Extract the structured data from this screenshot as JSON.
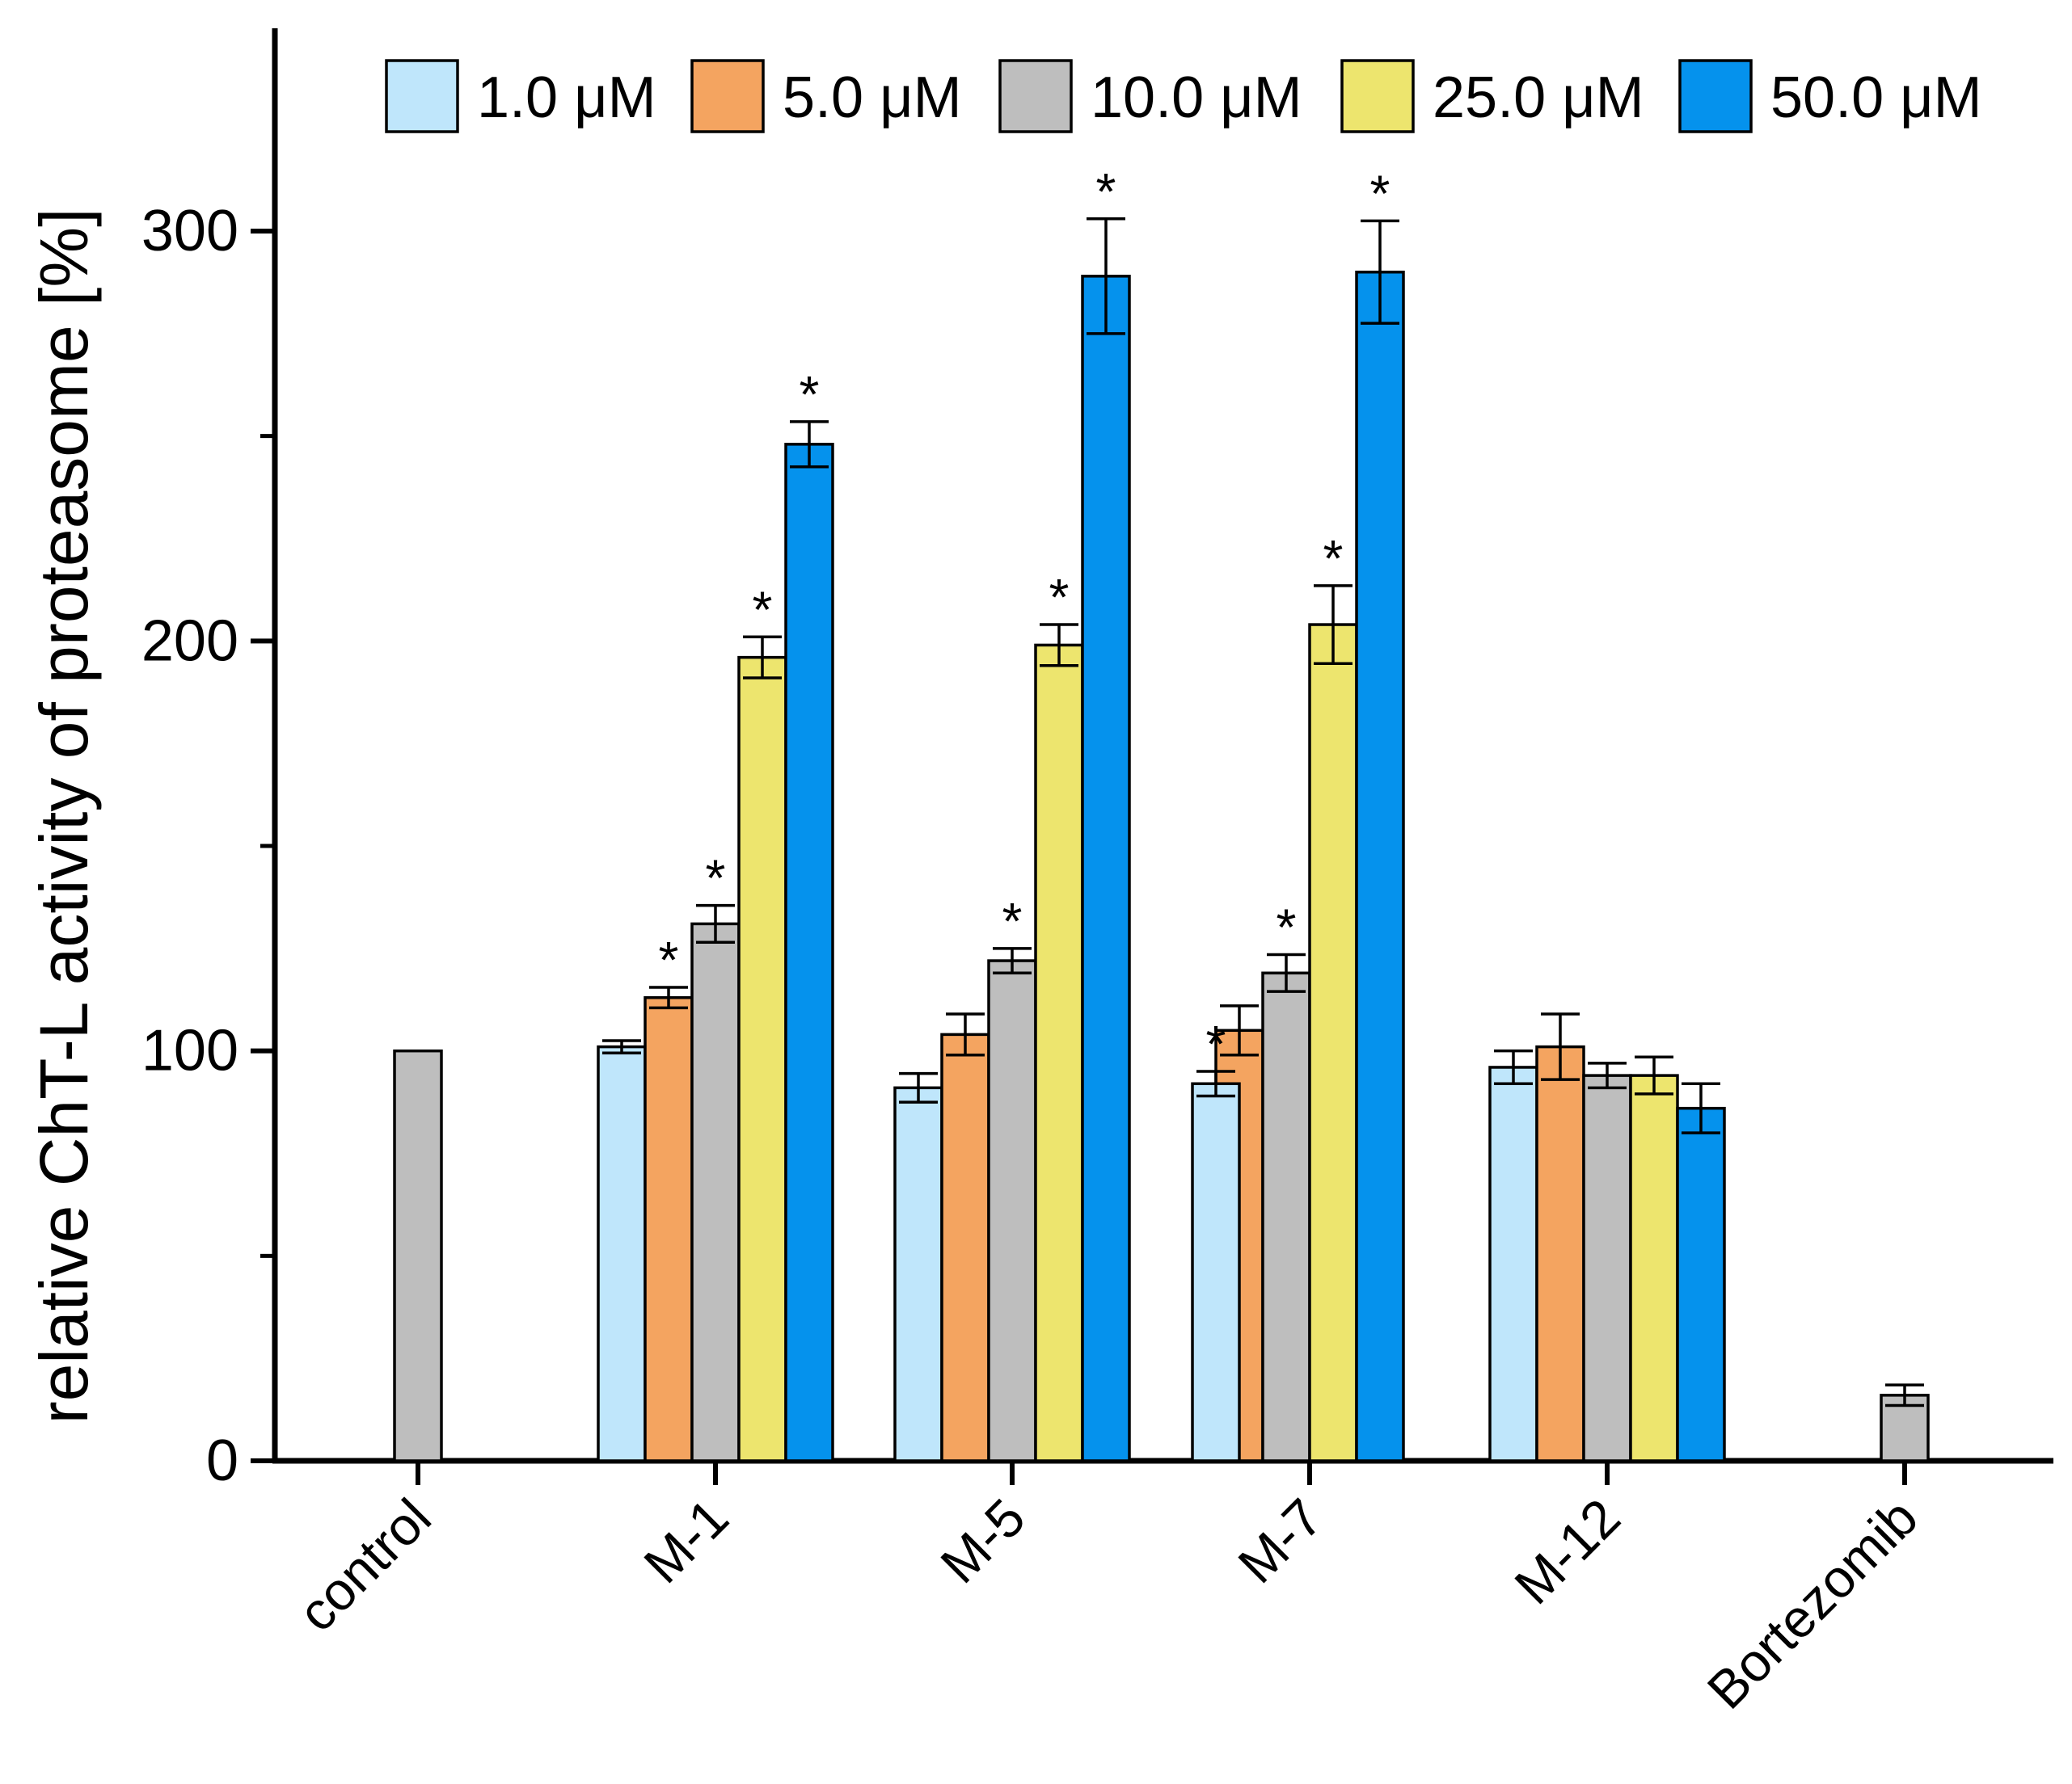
{
  "chart_data": {
    "type": "bar",
    "title": "",
    "xlabel": "",
    "ylabel": "relative ChT-L activity of proteasome [%]",
    "ylim": [
      0,
      350
    ],
    "yticks_major": [
      0,
      100,
      200,
      300
    ],
    "yticks_minor": [
      50,
      150,
      250
    ],
    "grid": false,
    "legend_position": "top",
    "categories": [
      "control",
      "M-1",
      "M-5",
      "M-7",
      "M-12",
      "Bortezomib"
    ],
    "series": [
      {
        "name": "1.0 μM",
        "color": "#bfe6fb",
        "values": [
          null,
          101,
          91,
          null,
          96,
          null
        ],
        "errors": [
          null,
          1.5,
          3.5,
          null,
          4,
          null
        ],
        "significant": [
          false,
          false,
          false,
          false,
          false,
          false
        ]
      },
      {
        "name": "5.0 μM",
        "color": "#f4a460",
        "values": [
          null,
          113,
          104,
          105,
          101,
          null
        ],
        "errors": [
          null,
          2.5,
          5,
          6,
          8,
          null
        ],
        "significant": [
          false,
          true,
          false,
          false,
          false,
          false
        ]
      },
      {
        "name": "10.0 μM",
        "color": "#bebebe",
        "values": [
          100,
          131,
          122,
          119,
          94,
          16
        ],
        "errors": [
          0,
          4.5,
          3,
          4.5,
          3,
          2.5
        ],
        "significant": [
          false,
          true,
          true,
          true,
          false,
          false
        ]
      },
      {
        "name": "25.0 μM",
        "color": "#ede56e",
        "values": [
          null,
          196,
          199,
          204,
          94,
          null
        ],
        "errors": [
          null,
          5,
          5,
          9.5,
          4.5,
          null
        ],
        "significant": [
          false,
          true,
          true,
          true,
          false,
          false
        ]
      },
      {
        "name": "50.0 μM",
        "color": "#0592ed",
        "values": [
          null,
          248,
          289,
          290,
          86,
          null
        ],
        "errors": [
          null,
          5.5,
          14,
          12.5,
          6,
          null
        ],
        "significant": [
          false,
          true,
          true,
          true,
          false,
          false
        ]
      }
    ],
    "extra_significance": [
      {
        "category": "M-7",
        "series": "1.0 μM",
        "value": 92,
        "error": 3
      }
    ],
    "significance_marker": "*"
  }
}
